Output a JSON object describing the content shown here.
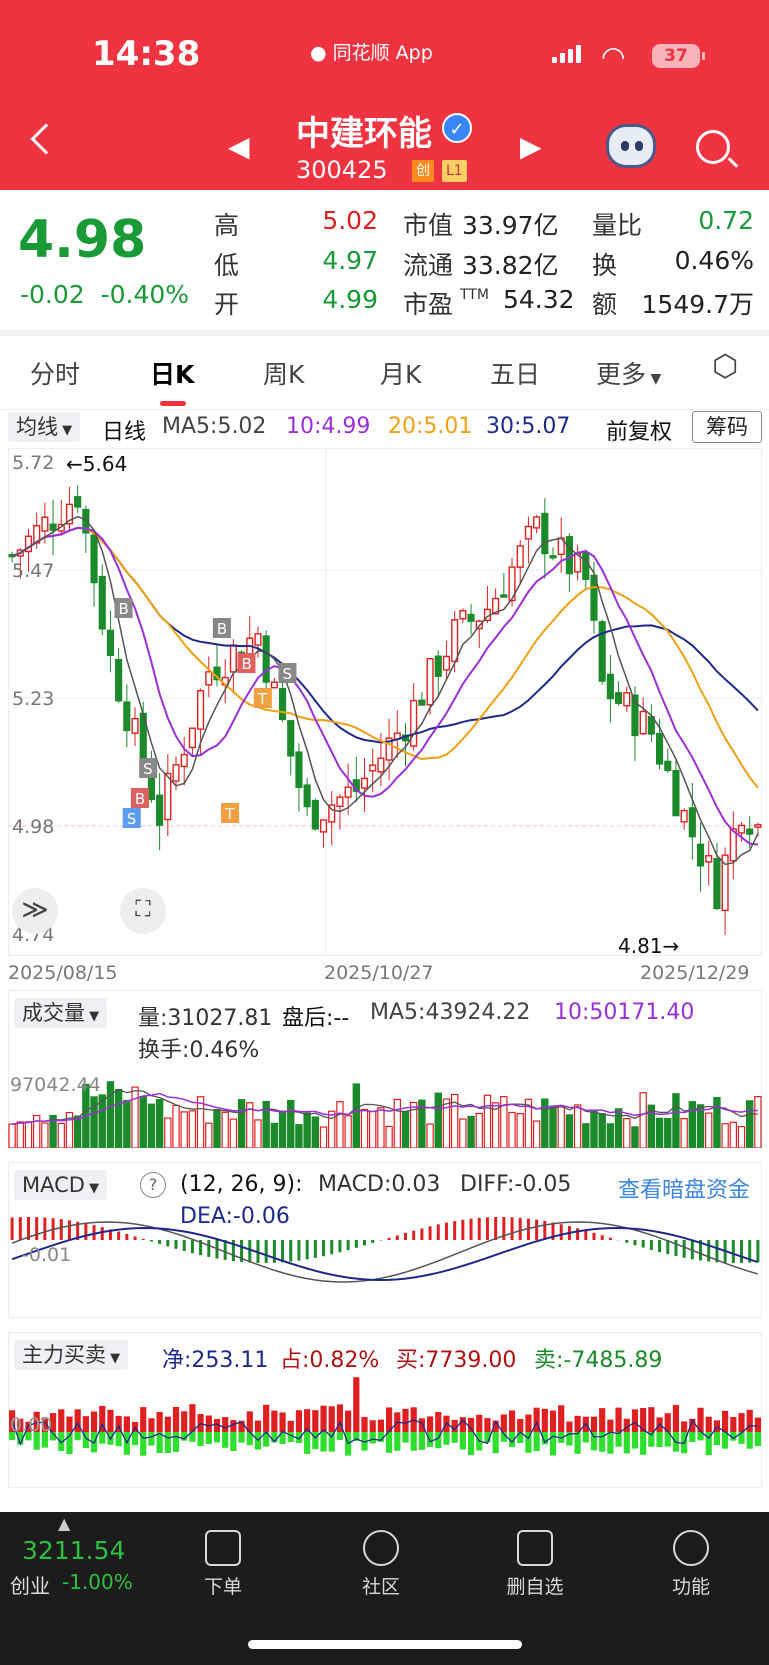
{
  "status": {
    "time": "14:38",
    "app": "同花顺 App",
    "battery": "37"
  },
  "header": {
    "name": "中建环能",
    "code": "300425",
    "tag1": "创",
    "tag2": "L1"
  },
  "quote": {
    "price": "4.98",
    "change": "-0.02",
    "change_pct": "-0.40%",
    "high_label": "高",
    "high": "5.02",
    "low_label": "低",
    "low": "4.97",
    "open_label": "开",
    "open": "4.99",
    "mktcap_label": "市值",
    "mktcap": "33.97亿",
    "float_label": "流通",
    "float": "33.82亿",
    "pe_label": "市盈",
    "pe_sup": "TTM",
    "pe": "54.32",
    "volratio_label": "量比",
    "volratio": "0.72",
    "turnover_label": "换",
    "turnover": "0.46%",
    "amount_label": "额",
    "amount": "1549.7万"
  },
  "tabs": [
    "分时",
    "日K",
    "周K",
    "月K",
    "五日",
    "更多"
  ],
  "kline": {
    "indicator": "均线",
    "period": "日线",
    "ma5": "MA5:5.02",
    "ma10": "10:4.99",
    "ma20": "20:5.01",
    "ma30": "30:5.07",
    "adjust": "前复权",
    "chip_button": "筹码",
    "y_labels": [
      "5.72",
      "5.47",
      "5.23",
      "4.98",
      "4.74"
    ],
    "high_mark": "←5.64",
    "low_mark": "4.81→",
    "dates": [
      "2025/08/15",
      "2025/10/27",
      "2025/12/29"
    ]
  },
  "volume": {
    "label": "成交量",
    "vol": "量:31027.81",
    "after": "盘后:--",
    "ma5": "MA5:43924.22",
    "ma10": "10:50171.40",
    "turnover": "换手:0.46%",
    "axis": "97042.44"
  },
  "macd": {
    "label": "MACD",
    "help": "?",
    "params": "(12, 26, 9):",
    "macd": "MACD:0.03",
    "diff": "DIFF:-0.05",
    "dea": "DEA:-0.06",
    "link": "查看暗盘资金",
    "axis": "-0.01"
  },
  "mainforce": {
    "label": "主力买卖",
    "net": "净:253.11",
    "ratio": "占:0.82%",
    "buy": "买:7739.00",
    "sell": "卖:-7485.89",
    "axis": "0.00"
  },
  "bottom": {
    "index_value": "3211.54",
    "index_name": "创业",
    "index_change": "-1.00%",
    "nav": [
      "下单",
      "社区",
      "删自选",
      "功能"
    ]
  },
  "colors": {
    "up": "#e02020",
    "down": "#1a8a2a",
    "ma5": "#444444",
    "ma10": "#9b30d9",
    "ma20": "#f0a010",
    "ma30": "#1e2a8a"
  }
}
